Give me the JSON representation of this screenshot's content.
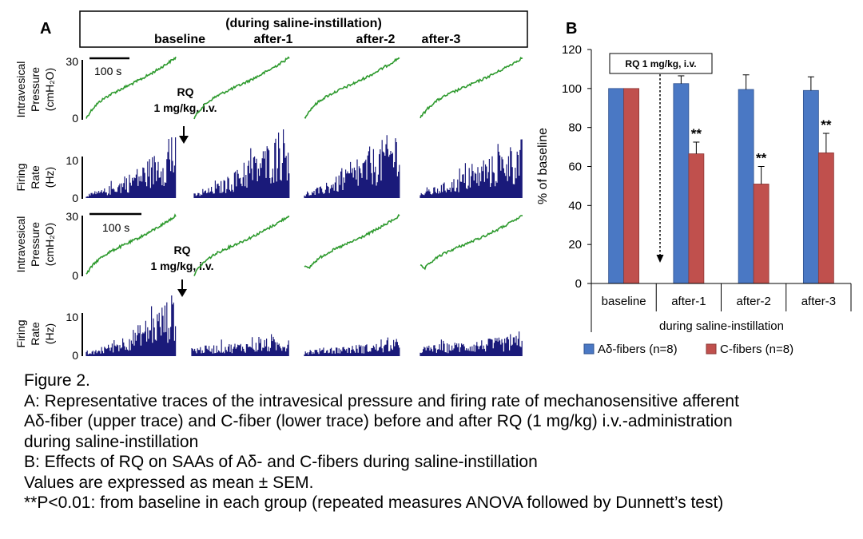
{
  "panel_a": {
    "letter": "A",
    "header_title": "(during saline-instillation)",
    "segments": [
      "baseline",
      "after-1",
      "after-2",
      "after-3"
    ],
    "pressure_label_1": "Intravesical",
    "pressure_label_2": "Pressure",
    "pressure_unit": "(cmH₂O)",
    "firing_label_1": "Firing",
    "firing_label_2": "Rate",
    "firing_unit": "(Hz)",
    "scale_bar_label": "100 s",
    "drug_label_1": "RQ",
    "drug_label_2": "1 mg/kg, i.v.",
    "pressure_ticks": [
      "0",
      "30"
    ],
    "firing_ticks": [
      "0",
      "10"
    ],
    "colors": {
      "pressure": "#2e9a2e",
      "firing": "#1a1a7a"
    }
  },
  "chart_data": {
    "type": "bar",
    "panel_letter": "B",
    "drug_annotation": "RQ 1 mg/kg, i.v.",
    "categories": [
      "baseline",
      "after-1",
      "after-2",
      "after-3"
    ],
    "series": [
      {
        "name": "Aδ-fibers (n=8)",
        "color": "#4a78c4",
        "values": [
          100,
          102.5,
          99.5,
          99
        ],
        "errors": [
          0,
          4,
          7.5,
          7
        ]
      },
      {
        "name": "C-fibers (n=8)",
        "color": "#c0504d",
        "values": [
          100,
          66.5,
          51,
          67
        ],
        "errors": [
          0,
          6,
          9,
          10
        ]
      }
    ],
    "significance": [
      [
        "",
        "**",
        "**",
        "**"
      ]
    ],
    "significance_labels": [
      "**",
      "**",
      "**"
    ],
    "ylabel": "% of baseline",
    "xlabel": "during saline-instillation",
    "ylim": [
      0,
      120
    ],
    "yticks": [
      "0",
      "20",
      "40",
      "60",
      "80",
      "100",
      "120"
    ],
    "grid": false,
    "legend_position": "bottom"
  },
  "caption": {
    "title": "Figure 2.",
    "line_a1": "A: Representative traces of the intravesical pressure and firing rate of mechanosensitive afferent",
    "line_a2": "Aδ-fiber (upper trace) and C-fiber (lower trace) before and after RQ (1 mg/kg) i.v.-administration",
    "line_a3": "during saline-instillation",
    "line_b": "B:  Effects of RQ on SAAs of Aδ- and C-fibers during saline-instillation",
    "line_values": "Values are expressed as mean ± SEM.",
    "line_p": "**P<0.01: from baseline in each group (repeated measures ANOVA followed by Dunnett’s test)"
  }
}
